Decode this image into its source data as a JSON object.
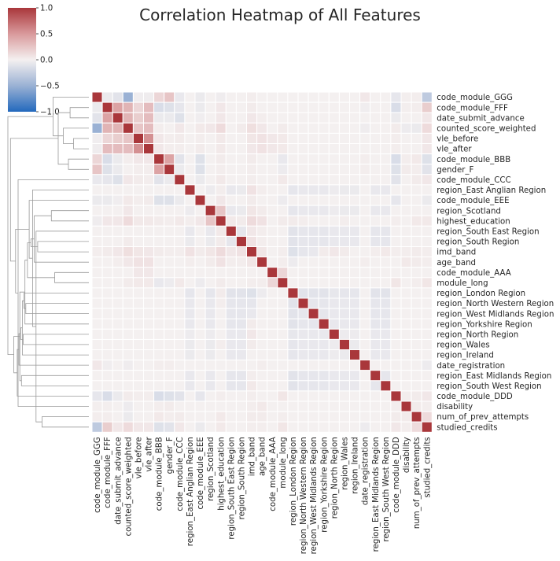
{
  "chart_data": {
    "type": "heatmap",
    "title": "Correlation Heatmap of All Features",
    "xlabel": "",
    "ylabel": "",
    "colormap": {
      "name": "vlag",
      "stops": [
        "#2166ac",
        "#e8ecf4",
        "#ffffff",
        "#f6e6e6",
        "#b2182b"
      ],
      "vmin": -1.0,
      "vmax": 1.0,
      "ticks": [
        "1.0",
        "0.5",
        "0.0",
        "−0.5",
        "−1.0"
      ]
    },
    "features": [
      "code_module_GGG",
      "code_module_FFF",
      "date_submit_advance",
      "counted_score_weighted",
      "vle_before",
      "vle_after",
      "code_module_BBB",
      "gender_F",
      "code_module_CCC",
      "region_East Anglian Region",
      "code_module_EEE",
      "region_Scotland",
      "highest_education",
      "region_South East Region",
      "region_South Region",
      "imd_band",
      "age_band",
      "code_module_AAA",
      "module_long",
      "region_London Region",
      "region_North Western Region",
      "region_West Midlands Region",
      "region_Yorkshire Region",
      "region_North Region",
      "region_Wales",
      "region_Ireland",
      "date_registration",
      "region_East Midlands Region",
      "region_South West Region",
      "code_module_DDD",
      "disability",
      "num_of_prev_attempts",
      "studied_credits"
    ],
    "values": [
      [
        1.0,
        -0.05,
        -0.1,
        -0.5,
        -0.02,
        -0.03,
        0.15,
        0.25,
        -0.06,
        0.0,
        -0.05,
        0.0,
        -0.03,
        0.0,
        0.0,
        0.02,
        0.0,
        0.0,
        0.0,
        0.0,
        0.0,
        0.0,
        0.0,
        0.0,
        0.0,
        0.0,
        0.05,
        0.0,
        0.0,
        -0.08,
        0.01,
        0.02,
        -0.3
      ],
      [
        -0.05,
        1.0,
        0.45,
        0.35,
        0.15,
        0.3,
        -0.15,
        -0.12,
        -0.08,
        0.0,
        -0.05,
        0.0,
        0.05,
        0.0,
        0.0,
        0.03,
        0.0,
        0.0,
        0.0,
        0.0,
        0.0,
        0.0,
        0.0,
        0.0,
        0.0,
        0.0,
        -0.02,
        0.0,
        0.0,
        -0.15,
        0.01,
        0.02,
        0.2
      ],
      [
        -0.1,
        0.45,
        1.0,
        0.35,
        0.2,
        0.3,
        -0.05,
        -0.05,
        -0.12,
        0.0,
        -0.02,
        0.0,
        0.05,
        0.0,
        0.0,
        0.05,
        0.02,
        0.0,
        0.0,
        0.0,
        0.0,
        0.0,
        0.0,
        0.0,
        0.0,
        0.0,
        0.0,
        0.0,
        0.0,
        -0.05,
        0.0,
        0.0,
        0.05
      ],
      [
        -0.5,
        0.35,
        0.35,
        1.0,
        0.25,
        0.3,
        0.02,
        0.0,
        0.05,
        0.0,
        0.04,
        0.05,
        0.12,
        0.0,
        0.03,
        0.1,
        0.05,
        0.0,
        0.03,
        0.0,
        0.0,
        0.0,
        0.0,
        0.0,
        0.0,
        0.0,
        -0.03,
        0.0,
        0.0,
        0.03,
        -0.04,
        -0.05,
        0.12
      ],
      [
        -0.02,
        0.15,
        0.2,
        0.25,
        1.0,
        0.55,
        0.05,
        0.02,
        0.03,
        0.0,
        0.02,
        0.0,
        0.04,
        0.0,
        0.0,
        0.06,
        0.08,
        0.05,
        0.04,
        0.0,
        0.0,
        0.0,
        0.0,
        0.0,
        0.0,
        0.0,
        0.0,
        0.0,
        0.0,
        0.02,
        0.0,
        0.0,
        0.05
      ],
      [
        -0.03,
        0.3,
        0.3,
        0.3,
        0.55,
        1.0,
        0.05,
        0.02,
        0.02,
        0.0,
        0.03,
        0.0,
        0.04,
        0.0,
        0.0,
        0.05,
        0.08,
        0.05,
        0.04,
        0.0,
        0.0,
        0.0,
        0.0,
        0.0,
        0.0,
        0.0,
        0.0,
        0.0,
        0.0,
        0.02,
        0.0,
        0.0,
        0.05
      ],
      [
        0.15,
        -0.15,
        -0.05,
        0.02,
        0.05,
        0.05,
        1.0,
        0.45,
        -0.1,
        0.0,
        -0.12,
        0.0,
        0.03,
        0.0,
        0.0,
        0.03,
        0.0,
        0.0,
        -0.06,
        0.0,
        0.0,
        0.0,
        0.0,
        0.0,
        0.0,
        0.0,
        0.02,
        0.0,
        0.0,
        -0.15,
        0.02,
        0.04,
        -0.12
      ],
      [
        0.25,
        -0.12,
        -0.05,
        0.0,
        0.02,
        0.02,
        0.45,
        1.0,
        -0.05,
        0.0,
        -0.12,
        0.0,
        0.02,
        0.0,
        0.0,
        0.02,
        0.0,
        0.0,
        -0.04,
        0.0,
        0.0,
        0.0,
        0.0,
        0.0,
        0.0,
        0.0,
        0.02,
        0.0,
        0.0,
        -0.12,
        0.03,
        0.02,
        -0.1
      ],
      [
        -0.06,
        -0.08,
        -0.12,
        0.05,
        0.03,
        0.02,
        -0.1,
        -0.05,
        1.0,
        0.0,
        -0.05,
        0.0,
        0.04,
        0.0,
        0.0,
        0.02,
        0.0,
        0.0,
        0.04,
        0.0,
        0.0,
        0.0,
        0.0,
        0.0,
        0.0,
        0.0,
        0.0,
        0.0,
        0.0,
        -0.1,
        0.0,
        0.03,
        0.05
      ],
      [
        0.0,
        0.0,
        0.0,
        0.0,
        0.0,
        0.0,
        0.0,
        0.0,
        0.0,
        1.0,
        0.0,
        -0.04,
        0.02,
        -0.06,
        -0.05,
        0.08,
        0.02,
        0.0,
        0.0,
        -0.08,
        -0.06,
        -0.06,
        -0.06,
        -0.04,
        -0.05,
        -0.05,
        0.0,
        -0.06,
        -0.06,
        0.0,
        0.0,
        0.0,
        0.0
      ],
      [
        -0.05,
        -0.05,
        -0.02,
        0.04,
        0.02,
        0.03,
        -0.12,
        -0.12,
        -0.05,
        0.0,
        1.0,
        0.0,
        0.05,
        0.0,
        0.0,
        0.03,
        0.0,
        0.0,
        -0.04,
        0.0,
        0.0,
        0.0,
        0.0,
        0.0,
        0.0,
        0.0,
        0.0,
        0.0,
        0.0,
        -0.08,
        0.0,
        0.0,
        -0.05
      ],
      [
        0.0,
        0.0,
        0.0,
        0.05,
        0.0,
        0.0,
        0.0,
        0.0,
        0.0,
        -0.04,
        0.0,
        1.0,
        0.25,
        -0.06,
        -0.05,
        0.06,
        0.03,
        0.0,
        0.0,
        -0.08,
        -0.06,
        -0.06,
        -0.06,
        -0.04,
        -0.05,
        -0.05,
        0.0,
        -0.06,
        -0.06,
        0.0,
        0.0,
        0.0,
        0.0
      ],
      [
        -0.03,
        0.05,
        0.05,
        0.12,
        0.04,
        0.04,
        0.03,
        0.02,
        0.04,
        0.02,
        0.05,
        0.25,
        1.0,
        0.04,
        0.03,
        0.12,
        0.08,
        0.0,
        0.03,
        0.03,
        0.02,
        0.0,
        0.0,
        0.0,
        0.02,
        0.0,
        0.0,
        0.0,
        0.0,
        0.02,
        0.0,
        0.04,
        0.04
      ],
      [
        0.0,
        0.0,
        0.0,
        0.0,
        0.0,
        0.0,
        0.0,
        0.0,
        0.0,
        -0.06,
        0.0,
        -0.06,
        0.04,
        1.0,
        -0.08,
        0.05,
        0.02,
        0.0,
        0.0,
        -0.1,
        -0.08,
        -0.08,
        -0.08,
        -0.06,
        -0.06,
        -0.06,
        0.0,
        -0.08,
        -0.08,
        0.0,
        0.0,
        0.0,
        0.0
      ],
      [
        0.0,
        0.0,
        0.0,
        0.03,
        0.0,
        0.0,
        0.0,
        0.0,
        0.0,
        -0.05,
        0.0,
        -0.05,
        0.03,
        -0.08,
        1.0,
        0.08,
        0.02,
        0.0,
        0.0,
        -0.1,
        -0.08,
        -0.08,
        -0.08,
        -0.06,
        -0.06,
        -0.06,
        0.0,
        -0.08,
        -0.08,
        0.0,
        0.0,
        0.0,
        0.0
      ],
      [
        0.02,
        0.03,
        0.05,
        0.1,
        0.06,
        0.05,
        0.03,
        0.02,
        0.02,
        0.08,
        0.03,
        0.06,
        0.12,
        0.05,
        0.08,
        1.0,
        0.06,
        0.0,
        0.02,
        -0.12,
        -0.08,
        -0.06,
        0.03,
        0.05,
        0.03,
        0.0,
        0.0,
        0.02,
        0.04,
        0.02,
        0.02,
        0.03,
        0.02
      ],
      [
        0.0,
        0.0,
        0.02,
        0.05,
        0.08,
        0.08,
        0.0,
        0.0,
        0.0,
        0.02,
        0.0,
        0.03,
        0.08,
        0.02,
        0.02,
        0.06,
        1.0,
        0.0,
        0.02,
        -0.04,
        0.0,
        0.0,
        0.0,
        0.0,
        0.0,
        0.0,
        0.02,
        0.0,
        0.0,
        0.0,
        0.04,
        0.03,
        0.02
      ],
      [
        0.0,
        0.0,
        0.0,
        0.0,
        0.05,
        0.05,
        0.0,
        0.0,
        0.0,
        0.0,
        0.0,
        0.0,
        0.0,
        0.0,
        0.0,
        0.0,
        0.0,
        1.0,
        0.15,
        0.0,
        0.0,
        0.0,
        0.0,
        0.0,
        0.0,
        0.0,
        0.0,
        0.0,
        0.0,
        0.0,
        0.0,
        0.0,
        0.0
      ],
      [
        0.0,
        0.0,
        0.0,
        0.03,
        0.04,
        0.04,
        -0.06,
        -0.04,
        0.04,
        0.0,
        -0.04,
        0.0,
        0.03,
        0.0,
        0.0,
        0.02,
        0.02,
        0.15,
        1.0,
        0.0,
        0.0,
        0.0,
        0.0,
        0.0,
        0.0,
        0.0,
        0.0,
        0.0,
        0.0,
        0.06,
        0.0,
        0.02,
        0.06
      ],
      [
        0.0,
        0.0,
        0.0,
        0.0,
        0.0,
        0.0,
        0.0,
        0.0,
        0.0,
        -0.08,
        0.0,
        -0.08,
        0.03,
        -0.1,
        -0.1,
        -0.12,
        -0.04,
        0.0,
        0.0,
        1.0,
        -0.1,
        -0.1,
        -0.1,
        -0.07,
        -0.08,
        -0.08,
        0.0,
        -0.1,
        -0.1,
        0.0,
        0.0,
        0.0,
        0.0
      ],
      [
        0.0,
        0.0,
        0.0,
        0.0,
        0.0,
        0.0,
        0.0,
        0.0,
        0.0,
        -0.06,
        0.0,
        -0.06,
        0.02,
        -0.08,
        -0.08,
        -0.08,
        0.0,
        0.0,
        0.0,
        -0.1,
        1.0,
        -0.08,
        -0.08,
        -0.06,
        -0.06,
        -0.06,
        0.0,
        -0.08,
        -0.08,
        0.0,
        0.0,
        0.0,
        0.0
      ],
      [
        0.0,
        0.0,
        0.0,
        0.0,
        0.0,
        0.0,
        0.0,
        0.0,
        0.0,
        -0.06,
        0.0,
        -0.06,
        0.0,
        -0.08,
        -0.08,
        -0.06,
        0.0,
        0.0,
        0.0,
        -0.1,
        -0.08,
        1.0,
        -0.08,
        -0.06,
        -0.06,
        -0.06,
        0.0,
        -0.08,
        -0.08,
        0.0,
        0.0,
        0.0,
        0.0
      ],
      [
        0.0,
        0.0,
        0.0,
        0.0,
        0.0,
        0.0,
        0.0,
        0.0,
        0.0,
        -0.06,
        0.0,
        -0.06,
        0.0,
        -0.08,
        -0.08,
        0.03,
        0.0,
        0.0,
        0.0,
        -0.1,
        -0.08,
        -0.08,
        1.0,
        -0.06,
        -0.06,
        -0.06,
        0.0,
        -0.08,
        -0.08,
        0.0,
        0.0,
        0.0,
        0.0
      ],
      [
        0.0,
        0.0,
        0.0,
        0.0,
        0.0,
        0.0,
        0.0,
        0.0,
        0.0,
        -0.04,
        0.0,
        -0.04,
        0.0,
        -0.06,
        -0.06,
        0.05,
        0.0,
        0.0,
        0.0,
        -0.07,
        -0.06,
        -0.06,
        -0.06,
        1.0,
        -0.04,
        -0.04,
        0.0,
        -0.06,
        -0.06,
        0.0,
        0.0,
        0.0,
        0.0
      ],
      [
        0.0,
        0.0,
        0.0,
        0.0,
        0.0,
        0.0,
        0.0,
        0.0,
        0.0,
        -0.05,
        0.0,
        -0.05,
        0.02,
        -0.06,
        -0.06,
        0.03,
        0.0,
        0.0,
        0.0,
        -0.08,
        -0.06,
        -0.06,
        -0.06,
        -0.04,
        1.0,
        -0.05,
        0.0,
        -0.06,
        -0.06,
        0.0,
        0.0,
        0.0,
        0.0
      ],
      [
        0.0,
        0.0,
        0.0,
        0.0,
        0.0,
        0.0,
        0.0,
        0.0,
        0.0,
        -0.05,
        0.0,
        -0.05,
        0.0,
        -0.06,
        -0.06,
        0.0,
        0.0,
        0.0,
        0.0,
        -0.08,
        -0.06,
        -0.06,
        -0.06,
        -0.04,
        -0.05,
        1.0,
        0.0,
        -0.06,
        -0.06,
        0.0,
        0.0,
        0.0,
        0.0
      ],
      [
        0.05,
        -0.02,
        0.0,
        -0.03,
        0.0,
        0.0,
        0.02,
        0.02,
        0.0,
        0.0,
        0.0,
        0.0,
        0.0,
        0.0,
        0.0,
        0.0,
        0.02,
        0.0,
        0.0,
        0.0,
        0.0,
        0.0,
        0.0,
        0.0,
        0.0,
        0.0,
        1.0,
        0.0,
        0.0,
        0.0,
        0.0,
        0.0,
        -0.04
      ],
      [
        0.0,
        0.0,
        0.0,
        0.0,
        0.0,
        0.0,
        0.0,
        0.0,
        0.0,
        -0.06,
        0.0,
        -0.06,
        0.0,
        -0.08,
        -0.08,
        0.02,
        0.0,
        0.0,
        0.0,
        -0.1,
        -0.08,
        -0.08,
        -0.08,
        -0.06,
        -0.06,
        -0.06,
        0.0,
        1.0,
        -0.08,
        0.0,
        0.0,
        0.0,
        0.0
      ],
      [
        0.0,
        0.0,
        0.0,
        0.0,
        0.0,
        0.0,
        0.0,
        0.0,
        0.0,
        -0.06,
        0.0,
        -0.06,
        0.0,
        -0.08,
        -0.08,
        0.04,
        0.0,
        0.0,
        0.0,
        -0.1,
        -0.08,
        -0.08,
        -0.08,
        -0.06,
        -0.06,
        -0.06,
        0.0,
        -0.08,
        1.0,
        0.0,
        0.0,
        0.0,
        0.0
      ],
      [
        -0.08,
        -0.15,
        -0.05,
        0.03,
        0.02,
        0.02,
        -0.15,
        -0.12,
        -0.1,
        0.0,
        -0.08,
        0.0,
        0.02,
        0.0,
        0.0,
        0.02,
        0.0,
        0.0,
        0.06,
        0.0,
        0.0,
        0.0,
        0.0,
        0.0,
        0.0,
        0.0,
        0.0,
        0.0,
        0.0,
        1.0,
        0.02,
        0.03,
        0.05
      ],
      [
        0.01,
        0.01,
        0.0,
        -0.04,
        0.0,
        0.0,
        0.02,
        0.03,
        0.0,
        0.0,
        0.0,
        0.0,
        0.0,
        0.0,
        0.0,
        0.02,
        0.04,
        0.0,
        0.0,
        0.0,
        0.0,
        0.0,
        0.0,
        0.0,
        0.0,
        0.0,
        0.0,
        0.0,
        0.0,
        0.02,
        1.0,
        0.03,
        0.02
      ],
      [
        0.02,
        0.02,
        0.0,
        -0.05,
        0.0,
        0.0,
        0.04,
        0.02,
        0.03,
        0.0,
        0.0,
        0.0,
        0.04,
        0.0,
        0.0,
        0.03,
        0.03,
        0.0,
        0.02,
        0.0,
        0.0,
        0.0,
        0.0,
        0.0,
        0.0,
        0.0,
        0.0,
        0.0,
        0.0,
        0.03,
        0.03,
        1.0,
        0.12
      ],
      [
        -0.3,
        0.2,
        0.05,
        0.12,
        0.05,
        0.05,
        -0.12,
        -0.1,
        0.05,
        0.0,
        -0.05,
        0.0,
        0.04,
        0.0,
        0.0,
        0.02,
        0.02,
        0.0,
        0.06,
        0.0,
        0.0,
        0.0,
        0.0,
        0.0,
        0.0,
        0.0,
        -0.04,
        0.0,
        0.0,
        0.05,
        0.02,
        0.12,
        1.0
      ]
    ],
    "dendrogram": {
      "description_orientation": "left",
      "merges": [
        [
          4,
          5,
          0.18
        ],
        [
          1,
          2,
          0.22
        ],
        [
          6,
          7,
          0.24
        ],
        [
          33,
          3,
          0.3
        ],
        [
          34,
          35,
          0.36
        ],
        [
          36,
          0,
          0.42
        ],
        [
          17,
          18,
          0.4
        ],
        [
          11,
          12,
          0.44
        ],
        [
          31,
          32,
          0.55
        ],
        [
          14,
          15,
          0.6
        ],
        [
          13,
          41,
          0.62
        ],
        [
          40,
          16,
          0.64
        ],
        [
          43,
          9,
          0.66
        ],
        [
          44,
          42,
          0.68
        ],
        [
          45,
          10,
          0.7
        ],
        [
          46,
          39,
          0.72
        ],
        [
          20,
          21,
          0.74
        ],
        [
          48,
          22,
          0.75
        ],
        [
          49,
          19,
          0.76
        ],
        [
          23,
          24,
          0.77
        ],
        [
          51,
          25,
          0.78
        ],
        [
          27,
          28,
          0.79
        ],
        [
          52,
          53,
          0.8
        ],
        [
          54,
          50,
          0.81
        ],
        [
          55,
          26,
          0.82
        ],
        [
          30,
          8,
          0.83
        ],
        [
          57,
          29,
          0.84
        ],
        [
          58,
          47,
          0.86
        ],
        [
          59,
          56,
          0.88
        ],
        [
          60,
          37,
          0.92
        ],
        [
          38,
          61,
          0.95
        ]
      ]
    }
  }
}
